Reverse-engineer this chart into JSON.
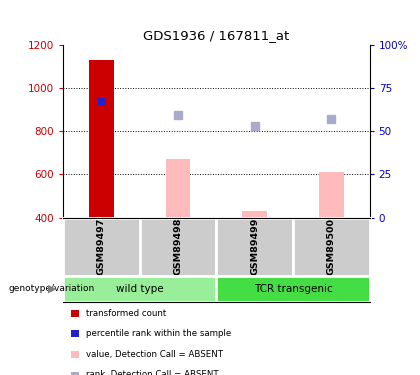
{
  "title": "GDS1936 / 167811_at",
  "samples": [
    "GSM89497",
    "GSM89498",
    "GSM89499",
    "GSM89500"
  ],
  "ylim": [
    400,
    1200
  ],
  "yticks": [
    400,
    600,
    800,
    1000,
    1200
  ],
  "right_yticks": [
    0,
    25,
    50,
    75,
    100
  ],
  "red_bar_values": [
    1130,
    null,
    null,
    null
  ],
  "blue_square_values": [
    940,
    null,
    null,
    null
  ],
  "pink_bar_values": [
    null,
    670,
    430,
    610
  ],
  "lavender_square_values": [
    null,
    875,
    825,
    855
  ],
  "red_bar_color": "#cc0000",
  "blue_square_color": "#2222cc",
  "pink_bar_color": "#ffbbbb",
  "lavender_square_color": "#aaaacc",
  "groups": [
    {
      "label": "wild type",
      "samples": [
        0,
        1
      ],
      "color": "#99ee99"
    },
    {
      "label": "TCR transgenic",
      "samples": [
        2,
        3
      ],
      "color": "#44dd44"
    }
  ],
  "group_label": "genotype/variation",
  "legend_items": [
    {
      "color": "#cc0000",
      "label": "transformed count"
    },
    {
      "color": "#2222cc",
      "label": "percentile rank within the sample"
    },
    {
      "color": "#ffbbbb",
      "label": "value, Detection Call = ABSENT"
    },
    {
      "color": "#aaaacc",
      "label": "rank, Detection Call = ABSENT"
    }
  ],
  "bar_width": 0.32,
  "sample_cell_color": "#cccccc",
  "right_axis_label_color": "#0000cc",
  "left_axis_label_color": "#cc0000"
}
